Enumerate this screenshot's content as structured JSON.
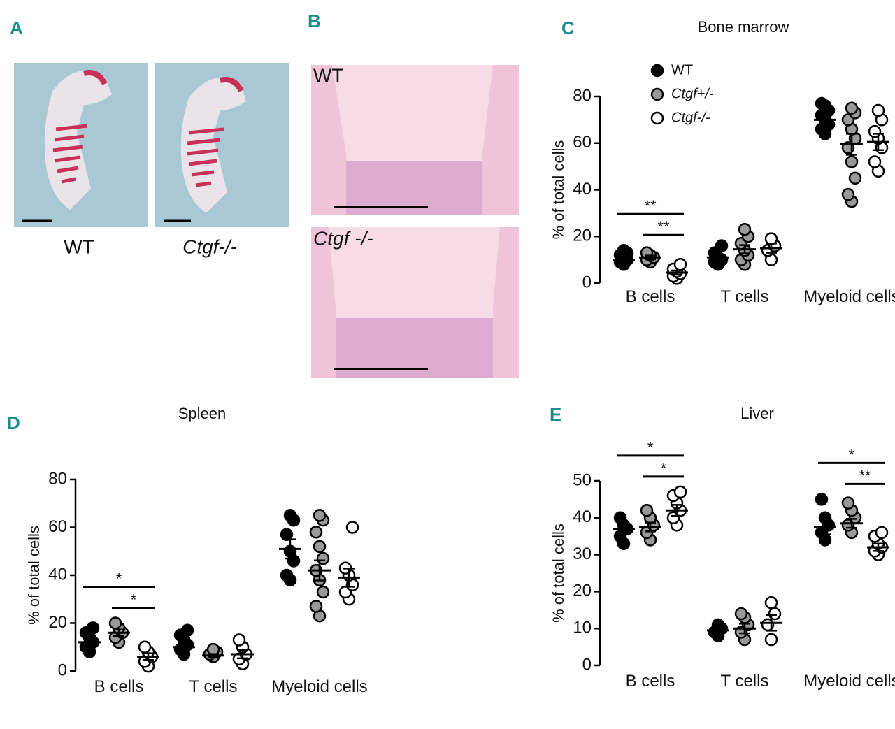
{
  "panel_labels": [
    "A",
    "B",
    "C",
    "D",
    "E"
  ],
  "panel_a": {
    "captions": [
      "WT",
      "Ctgf-/-"
    ]
  },
  "panel_b": {
    "labels": [
      "WT",
      "Ctgf -/-"
    ]
  },
  "chart_data": [
    {
      "type": "dot",
      "title": "Bone marrow",
      "ylabel": "% of total cells",
      "categories": [
        "B cells",
        "T cells",
        "Myeloid cells"
      ],
      "ylim": [
        0,
        80
      ],
      "yticks": [
        0,
        20,
        40,
        60,
        80
      ],
      "series": [
        {
          "name": "WT",
          "color": "#000000",
          "values": [
            [
              8,
              9,
              10,
              11,
              12,
              13,
              14
            ],
            [
              8,
              9,
              10,
              11,
              13,
              16
            ],
            [
              64,
              66,
              68,
              70,
              72,
              74,
              76,
              77
            ]
          ],
          "mean": [
            10,
            11,
            70
          ],
          "sem": [
            0.8,
            1.2,
            1.5
          ]
        },
        {
          "name": "Ctgf+/-",
          "color": "#999999",
          "values": [
            [
              9,
              10,
              11,
              12,
              13
            ],
            [
              8,
              10,
              12,
              14,
              17,
              20,
              23
            ],
            [
              35,
              38,
              45,
              52,
              58,
              62,
              66,
              70,
              73,
              75
            ]
          ],
          "mean": [
            11,
            14.5,
            59.5
          ],
          "sem": [
            0.8,
            1.8,
            4.5
          ]
        },
        {
          "name": "Ctgf-/-",
          "color": "#ffffff",
          "values": [
            [
              2,
              3,
              4,
              5,
              6,
              8
            ],
            [
              10,
              14,
              16,
              19
            ],
            [
              48,
              52,
              58,
              62,
              65,
              70,
              74
            ]
          ],
          "mean": [
            4.5,
            15,
            60.5
          ],
          "sem": [
            0.9,
            2,
            3.5
          ]
        }
      ],
      "annotations": [
        {
          "text": "**",
          "category": 0,
          "between": [
            0,
            2
          ]
        },
        {
          "text": "**",
          "category": 0,
          "between": [
            1,
            2
          ]
        }
      ]
    },
    {
      "type": "dot",
      "title": "Spleen",
      "ylabel": "% of total cells",
      "categories": [
        "B cells",
        "T cells",
        "Myeloid cells"
      ],
      "ylim": [
        0,
        80
      ],
      "yticks": [
        0,
        20,
        40,
        60,
        80
      ],
      "series": [
        {
          "color": "#000000",
          "values": [
            [
              8,
              10,
              12,
              14,
              16,
              18
            ],
            [
              7,
              9,
              11,
              13,
              15,
              17
            ],
            [
              38,
              40,
              46,
              50,
              57,
              63,
              65
            ]
          ],
          "mean": [
            12,
            10,
            51
          ],
          "sem": [
            1.2,
            1.3,
            4
          ]
        },
        {
          "color": "#999999",
          "values": [
            [
              12,
              14,
              16,
              18,
              20
            ],
            [
              6,
              7,
              8,
              9
            ],
            [
              23,
              27,
              33,
              38,
              42,
              47,
              52,
              58,
              63,
              65
            ]
          ],
          "mean": [
            16,
            6.5,
            42
          ],
          "sem": [
            1.3,
            0.6,
            4.2
          ]
        },
        {
          "color": "#ffffff",
          "values": [
            [
              2,
              4,
              6,
              8,
              10
            ],
            [
              3,
              5,
              7,
              10,
              13
            ],
            [
              30,
              33,
              36,
              40,
              43,
              60
            ]
          ],
          "mean": [
            6,
            7,
            39
          ],
          "sem": [
            1.4,
            1.7,
            3.8
          ]
        }
      ],
      "annotations": [
        {
          "text": "*",
          "category": 0,
          "between": [
            0,
            2
          ]
        },
        {
          "text": "*",
          "category": 0,
          "between": [
            1,
            2
          ]
        }
      ]
    },
    {
      "type": "dot",
      "title": "Liver",
      "ylabel": "% of total cells",
      "categories": [
        "B cells",
        "T cells",
        "Myeloid cells"
      ],
      "ylim": [
        0,
        50
      ],
      "yticks": [
        0,
        10,
        20,
        30,
        40,
        50
      ],
      "series": [
        {
          "color": "#000000",
          "values": [
            [
              33,
              35,
              37,
              38,
              40
            ],
            [
              8,
              9,
              10,
              11
            ],
            [
              34,
              36,
              38,
              40,
              45
            ]
          ],
          "mean": [
            37,
            9.5,
            37.5
          ],
          "sem": [
            1.2,
            0.6,
            2
          ]
        },
        {
          "color": "#999999",
          "values": [
            [
              34,
              36,
              38,
              40,
              42
            ],
            [
              7,
              9,
              11,
              13,
              14
            ],
            [
              36,
              38,
              40,
              42,
              44
            ]
          ],
          "mean": [
            37.5,
            10,
            38.5
          ],
          "sem": [
            1.2,
            1.3,
            1.2
          ]
        },
        {
          "color": "#ffffff",
          "values": [
            [
              38,
              40,
              42,
              44,
              46,
              47
            ],
            [
              7,
              11,
              14,
              17
            ],
            [
              30,
              31,
              32,
              33,
              35,
              36
            ]
          ],
          "mean": [
            42,
            11.5,
            32
          ],
          "sem": [
            1.5,
            2.1,
            1
          ]
        }
      ],
      "annotations": [
        {
          "text": "*",
          "category": 0,
          "between": [
            0,
            2
          ]
        },
        {
          "text": "*",
          "category": 0,
          "between": [
            1,
            2
          ]
        },
        {
          "text": "*",
          "category": 2,
          "between": [
            0,
            2
          ]
        },
        {
          "text": "**",
          "category": 2,
          "between": [
            1,
            2
          ]
        }
      ]
    }
  ]
}
